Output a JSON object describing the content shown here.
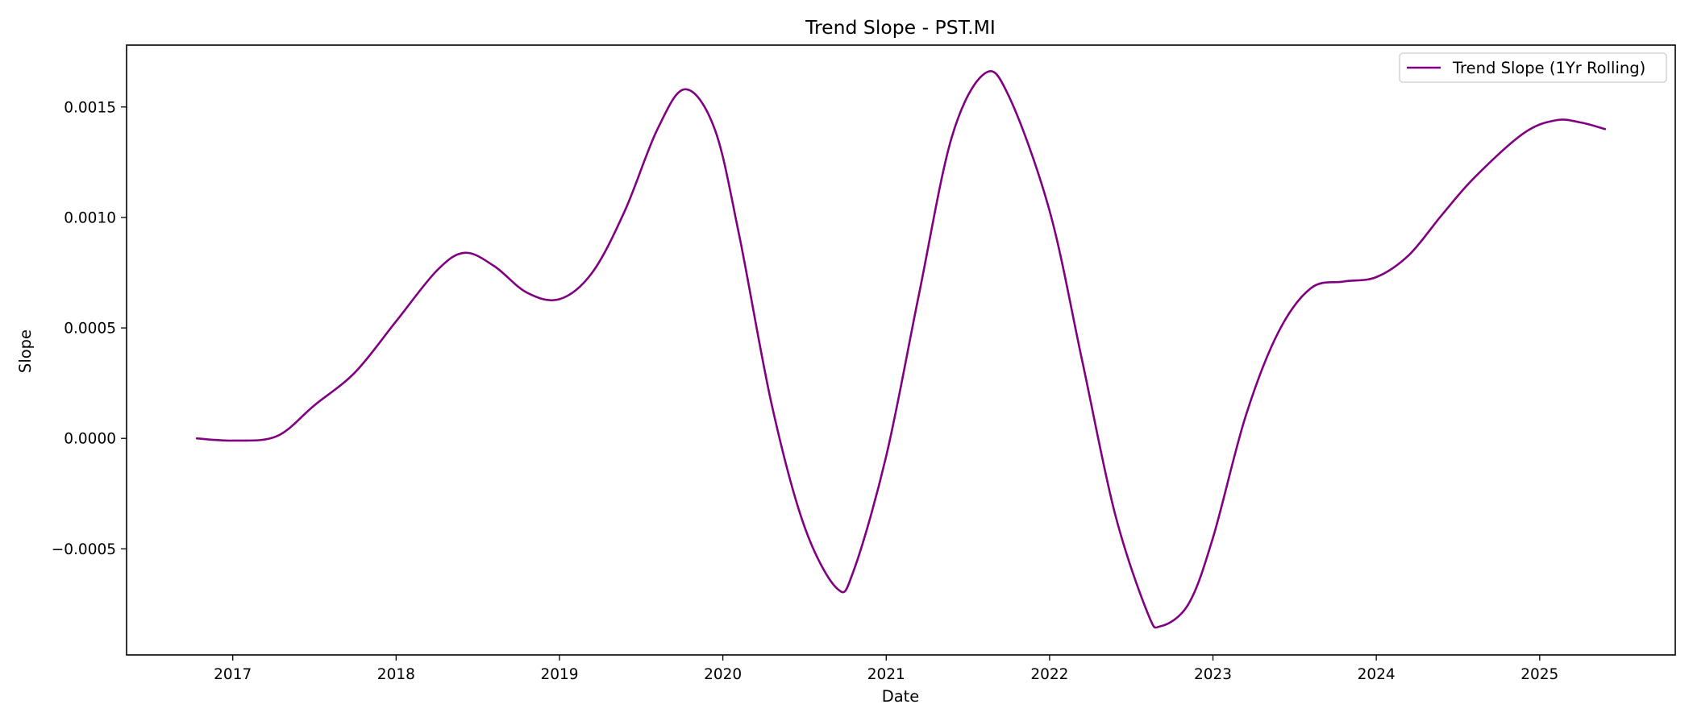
{
  "chart_data": {
    "type": "line",
    "title": "Trend Slope - PST.MI",
    "xlabel": "Date",
    "ylabel": "Slope",
    "x_ticks": [
      "2017",
      "2018",
      "2019",
      "2020",
      "2021",
      "2022",
      "2023",
      "2024",
      "2025"
    ],
    "y_ticks": [
      "0.0015",
      "0.0010",
      "0.0005",
      "0.0000",
      "−0.0005"
    ],
    "x_tick_values": [
      2017,
      2018,
      2019,
      2020,
      2021,
      2022,
      2023,
      2024,
      2025
    ],
    "y_tick_values": [
      0.0015,
      0.001,
      0.0005,
      0.0,
      -0.0005
    ],
    "xlim": [
      2016.35,
      2025.83
    ],
    "ylim": [
      -0.00098,
      0.00178
    ],
    "grid": false,
    "legend_position": "top-right",
    "series": [
      {
        "name": "Trend Slope (1Yr Rolling)",
        "color": "#800080",
        "x": [
          2016.78,
          2017.0,
          2017.27,
          2017.5,
          2017.75,
          2018.0,
          2018.25,
          2018.42,
          2018.6,
          2018.8,
          2019.0,
          2019.2,
          2019.4,
          2019.6,
          2019.77,
          2019.95,
          2020.1,
          2020.3,
          2020.5,
          2020.7,
          2020.8,
          2021.0,
          2021.2,
          2021.4,
          2021.6,
          2021.75,
          2022.0,
          2022.2,
          2022.4,
          2022.6,
          2022.68,
          2022.85,
          2023.0,
          2023.2,
          2023.4,
          2023.6,
          2023.8,
          2024.0,
          2024.2,
          2024.4,
          2024.6,
          2024.9,
          2025.1,
          2025.25,
          2025.4
        ],
        "y": [
          0.0,
          -1e-05,
          1e-05,
          0.00015,
          0.0003,
          0.00053,
          0.00076,
          0.00084,
          0.00078,
          0.00066,
          0.00063,
          0.00075,
          0.00103,
          0.0014,
          0.00158,
          0.0014,
          0.00092,
          0.00015,
          -0.0004,
          -0.00068,
          -0.0006,
          -8e-05,
          0.00065,
          0.00136,
          0.00165,
          0.00155,
          0.00103,
          0.00035,
          -0.00034,
          -0.00079,
          -0.00085,
          -0.00075,
          -0.00045,
          0.0001,
          0.00048,
          0.00068,
          0.00071,
          0.00073,
          0.00083,
          0.00101,
          0.00118,
          0.00138,
          0.00144,
          0.00143,
          0.0014
        ]
      }
    ]
  }
}
